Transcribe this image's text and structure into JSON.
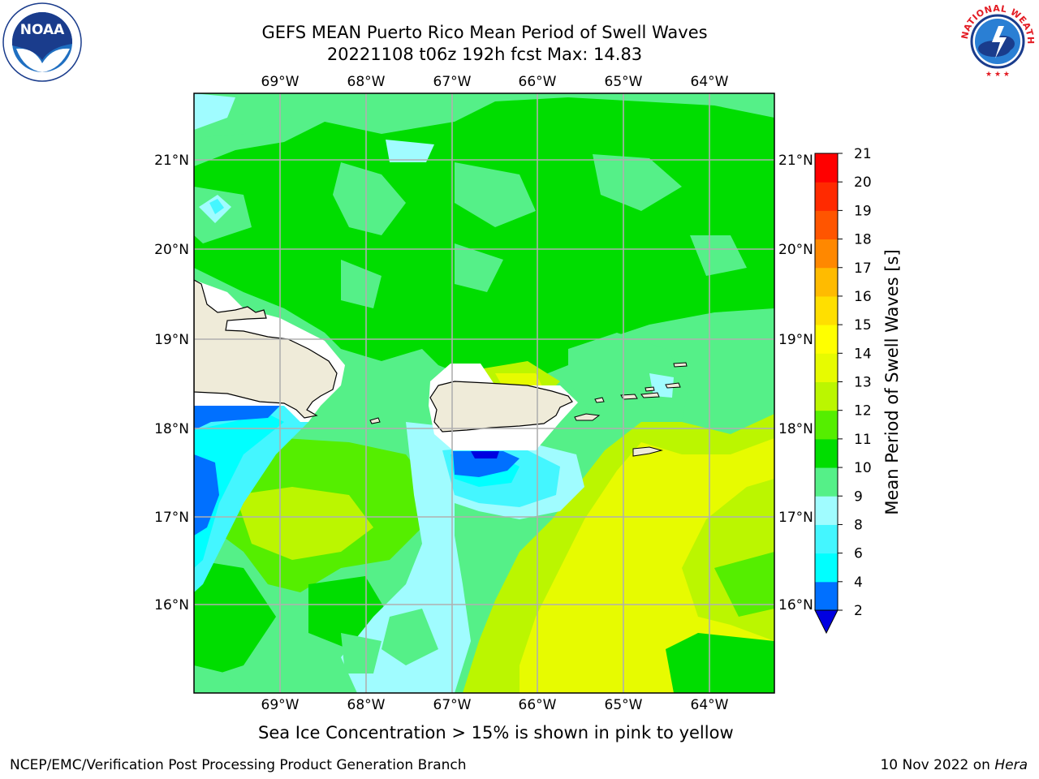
{
  "title": {
    "line1": "GEFS MEAN Puerto Rico Mean Period of Swell Waves",
    "line2": "20221108 t06z 192h fcst   Max: 14.83"
  },
  "map": {
    "lon_labels": [
      "69°W",
      "68°W",
      "67°W",
      "66°W",
      "65°W",
      "64°W"
    ],
    "lat_labels": [
      "21°N",
      "20°N",
      "19°N",
      "18°N",
      "17°N",
      "16°N"
    ],
    "colorbar": {
      "label": "Mean Period of Swell Waves [s]",
      "ticks": [
        "2",
        "4",
        "6",
        "8",
        "9",
        "10",
        "11",
        "12",
        "13",
        "14",
        "15",
        "16",
        "17",
        "18",
        "19",
        "20",
        "21"
      ],
      "colors": [
        "#0000e0",
        "#0070ff",
        "#00ffff",
        "#44f6ff",
        "#a0fcff",
        "#55f088",
        "#00dd00",
        "#55ee00",
        "#bbf600",
        "#e7fb00",
        "#ffff00",
        "#ffdf00",
        "#ffbb00",
        "#ff8800",
        "#ff5500",
        "#ff2a00",
        "#ff0000"
      ],
      "extend_color": "#0000e0"
    }
  },
  "note": "Sea Ice Concentration > 15% is shown in pink to yellow",
  "footer": {
    "left": "NCEP/EMC/Verification Post Processing Product Generation Branch",
    "date": "10 Nov 2022 on ",
    "machine": "Hera"
  },
  "logos": {
    "noaa": "NOAA",
    "nws": "NATIONAL WEATHER SERVICE"
  }
}
